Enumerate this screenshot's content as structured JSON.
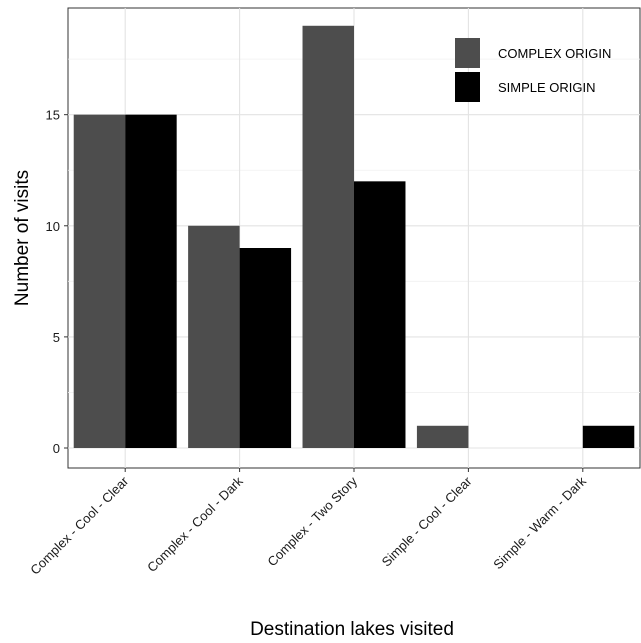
{
  "chart_data": {
    "type": "bar",
    "categories": [
      "Complex - Cool - Clear",
      "Complex - Cool - Dark",
      "Complex - Two Story",
      "Simple - Cool - Clear",
      "Simple - Warm - Dark"
    ],
    "series": [
      {
        "name": "COMPLEX ORIGIN",
        "color": "#4d4d4d",
        "values": [
          15,
          10,
          19,
          1,
          0
        ]
      },
      {
        "name": "SIMPLE ORIGIN",
        "color": "#000000",
        "values": [
          15,
          9,
          12,
          0,
          1
        ]
      }
    ],
    "xlabel": "Destination lakes visited",
    "ylabel": "Number of visits",
    "ylim": [
      -0.9,
      19.8
    ],
    "yticks": [
      0,
      5,
      10,
      15
    ],
    "grid": true,
    "legend_position": "top-right"
  }
}
